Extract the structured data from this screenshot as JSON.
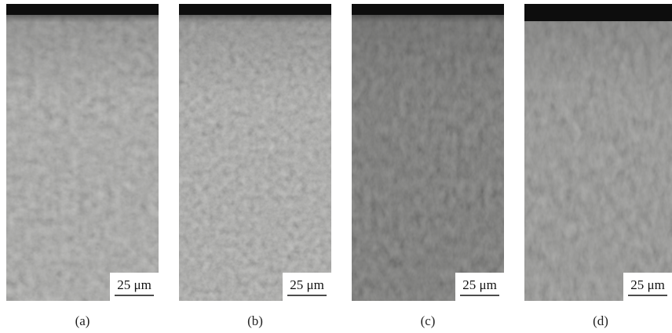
{
  "panels": [
    {
      "scale_bar": "25 μm",
      "label": "(a)"
    },
    {
      "scale_bar": "25 μm",
      "label": "(b)"
    },
    {
      "scale_bar": "25 μm",
      "label": "(c)"
    },
    {
      "scale_bar": "25 μm",
      "label": "(d)"
    }
  ]
}
